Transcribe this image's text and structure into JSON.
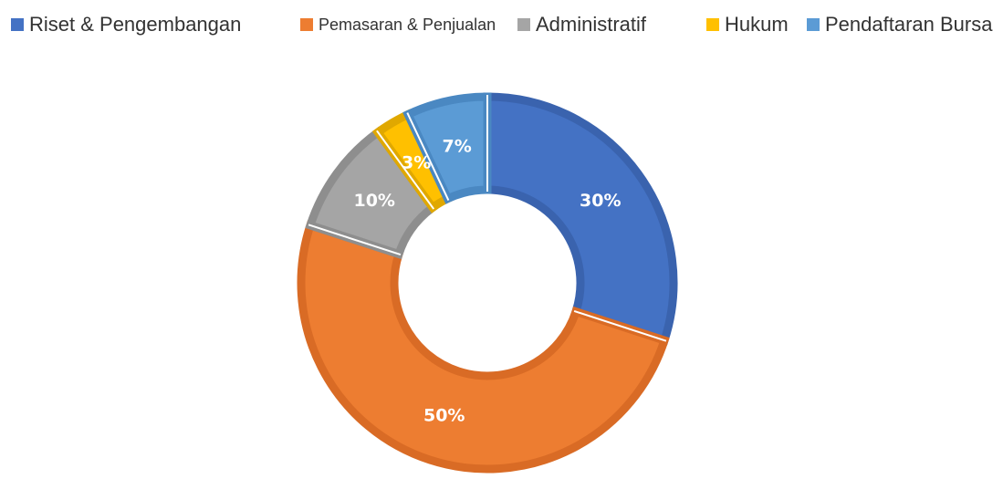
{
  "chart_data": {
    "type": "pie",
    "donut": true,
    "legend_position": "top",
    "categories": [
      "Riset & Pengembangan",
      "Pemasaran & Penjualan",
      "Administratif",
      "Hukum",
      "Pendaftaran Bursa"
    ],
    "values": [
      30,
      50,
      10,
      3,
      7
    ],
    "data_labels": [
      "30%",
      "50%",
      "10%",
      "3%",
      "7%"
    ],
    "colors": [
      "#4472C4",
      "#ED7D31",
      "#A5A5A5",
      "#FFC000",
      "#5B9BD5"
    ],
    "border_colors": [
      "#3A63AE",
      "#D96B25",
      "#8E8E8E",
      "#E0A800",
      "#4A88C2"
    ]
  }
}
